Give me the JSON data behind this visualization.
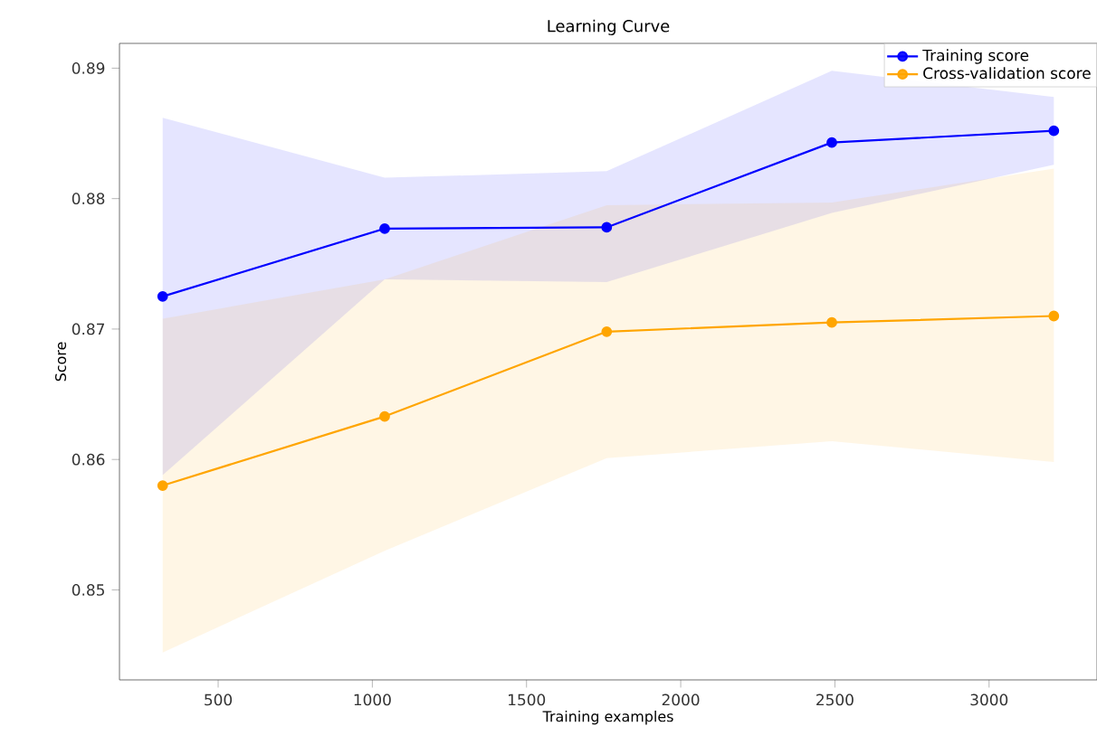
{
  "chart_data": {
    "type": "line",
    "title": "Learning Curve",
    "xlabel": "Training examples",
    "ylabel": "Score",
    "x": [
      320,
      1040,
      1760,
      2490,
      3210
    ],
    "series": [
      {
        "name": "Training score",
        "color": "#0000ff",
        "values": [
          0.8725,
          0.8777,
          0.8778,
          0.8843,
          0.8852
        ],
        "lower": [
          0.8588,
          0.8738,
          0.8736,
          0.8789,
          0.8826
        ],
        "upper": [
          0.8862,
          0.8816,
          0.8821,
          0.8898,
          0.8878
        ]
      },
      {
        "name": "Cross-validation score",
        "color": "#ffa500",
        "values": [
          0.858,
          0.8633,
          0.8698,
          0.8705,
          0.871
        ],
        "lower": [
          0.8452,
          0.853,
          0.8601,
          0.8614,
          0.8598
        ],
        "upper": [
          0.8708,
          0.8738,
          0.8795,
          0.8797,
          0.8823
        ]
      }
    ],
    "xlim": [
      180,
      3350
    ],
    "ylim": [
      0.8431,
      0.8919
    ],
    "xticks": [
      500,
      1000,
      1500,
      2000,
      2500,
      3000
    ],
    "yticks": [
      0.85,
      0.86,
      0.87,
      0.88,
      0.89
    ],
    "legend": "top right",
    "marker": "circle",
    "line_style": "solid",
    "grid": false
  }
}
